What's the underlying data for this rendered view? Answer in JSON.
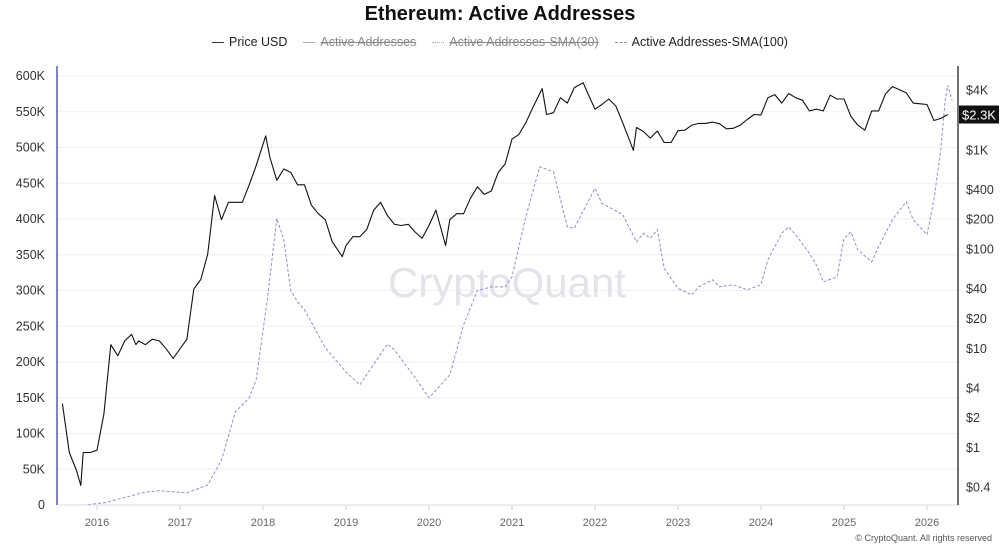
{
  "title": "Ethereum: Active Addresses",
  "legend": [
    {
      "label": "Price USD",
      "active": true
    },
    {
      "label": "Active Addresses",
      "active": false
    },
    {
      "label": "Active Addresses-SMA(30)",
      "active": false
    },
    {
      "label": "Active Addresses-SMA(100)",
      "active": true
    }
  ],
  "watermark": "CryptoQuant",
  "footer": "© CryptoQuant. All rights reserved",
  "current_price_label": "$2.3K",
  "colors": {
    "price": "#111111",
    "sma100": "#8c8fd6",
    "left_axis": "#7b7fe6"
  },
  "chart_data": {
    "type": "line",
    "title": "Ethereum: Active Addresses",
    "grid": true,
    "legend_placement": "top",
    "x_ticks": [
      "2016",
      "2017",
      "2018",
      "2019",
      "2020",
      "2021",
      "2022",
      "2023",
      "2024",
      "2025",
      "2026"
    ],
    "left_axis": {
      "ticks": [
        "0",
        "50K",
        "100K",
        "150K",
        "200K",
        "250K",
        "300K",
        "350K",
        "400K",
        "450K",
        "500K",
        "550K",
        "600K"
      ],
      "range": [
        0,
        600000
      ]
    },
    "right_axis": {
      "scale": "log",
      "ticks": [
        "$0.4",
        "$1",
        "$2",
        "$4",
        "$10",
        "$20",
        "$40",
        "$100",
        "$200",
        "$400",
        "$1K",
        "$2.3K",
        "$4K"
      ],
      "tick_values": [
        0.4,
        1,
        2,
        4,
        10,
        20,
        40,
        100,
        200,
        400,
        1000,
        2300,
        4000
      ]
    },
    "series": [
      {
        "name": "Price USD",
        "axis": "right",
        "points": [
          [
            "2015-08",
            2.8
          ],
          [
            "2015-09",
            0.9
          ],
          [
            "2015-10",
            0.6
          ],
          [
            "2015-10-21",
            0.42
          ],
          [
            "2015-11",
            0.9
          ],
          [
            "2015-12",
            0.9
          ],
          [
            "2016-01",
            0.95
          ],
          [
            "2016-02",
            2.2
          ],
          [
            "2016-03",
            11
          ],
          [
            "2016-04",
            8.5
          ],
          [
            "2016-05",
            12
          ],
          [
            "2016-06",
            14
          ],
          [
            "2016-06-20",
            11
          ],
          [
            "2016-07",
            12
          ],
          [
            "2016-08",
            11
          ],
          [
            "2016-09",
            12.5
          ],
          [
            "2016-10",
            12
          ],
          [
            "2016-11",
            10
          ],
          [
            "2016-12",
            8
          ],
          [
            "2017-01",
            10
          ],
          [
            "2017-02",
            12.5
          ],
          [
            "2017-03",
            40
          ],
          [
            "2017-04",
            50
          ],
          [
            "2017-05",
            90
          ],
          [
            "2017-06",
            350
          ],
          [
            "2017-07",
            200
          ],
          [
            "2017-08",
            300
          ],
          [
            "2017-09",
            300
          ],
          [
            "2017-10",
            300
          ],
          [
            "2017-11",
            450
          ],
          [
            "2017-12",
            700
          ],
          [
            "2018-01-13",
            1400
          ],
          [
            "2018-02",
            850
          ],
          [
            "2018-03",
            500
          ],
          [
            "2018-04",
            650
          ],
          [
            "2018-05",
            600
          ],
          [
            "2018-06",
            450
          ],
          [
            "2018-07",
            450
          ],
          [
            "2018-08",
            280
          ],
          [
            "2018-09",
            230
          ],
          [
            "2018-10",
            200
          ],
          [
            "2018-11",
            120
          ],
          [
            "2018-12-15",
            85
          ],
          [
            "2019-01",
            110
          ],
          [
            "2019-02",
            135
          ],
          [
            "2019-03",
            135
          ],
          [
            "2019-04",
            160
          ],
          [
            "2019-05",
            250
          ],
          [
            "2019-06",
            300
          ],
          [
            "2019-07",
            220
          ],
          [
            "2019-08",
            180
          ],
          [
            "2019-09",
            175
          ],
          [
            "2019-10",
            180
          ],
          [
            "2019-11",
            150
          ],
          [
            "2019-12",
            130
          ],
          [
            "2020-01",
            175
          ],
          [
            "2020-02",
            250
          ],
          [
            "2020-03-13",
            110
          ],
          [
            "2020-04",
            200
          ],
          [
            "2020-05",
            230
          ],
          [
            "2020-06",
            230
          ],
          [
            "2020-07",
            330
          ],
          [
            "2020-08",
            430
          ],
          [
            "2020-09",
            360
          ],
          [
            "2020-10",
            390
          ],
          [
            "2020-11",
            600
          ],
          [
            "2020-12",
            730
          ],
          [
            "2021-01",
            1300
          ],
          [
            "2021-02",
            1450
          ],
          [
            "2021-03",
            1900
          ],
          [
            "2021-04",
            2700
          ],
          [
            "2021-05-12",
            4200
          ],
          [
            "2021-06",
            2300
          ],
          [
            "2021-07",
            2400
          ],
          [
            "2021-08",
            3400
          ],
          [
            "2021-09",
            3000
          ],
          [
            "2021-10",
            4300
          ],
          [
            "2021-11-10",
            4800
          ],
          [
            "2021-12",
            3700
          ],
          [
            "2022-01",
            2600
          ],
          [
            "2022-02",
            2900
          ],
          [
            "2022-03",
            3300
          ],
          [
            "2022-04",
            2800
          ],
          [
            "2022-05",
            1900
          ],
          [
            "2022-06-18",
            1000
          ],
          [
            "2022-07",
            1700
          ],
          [
            "2022-08",
            1550
          ],
          [
            "2022-09",
            1330
          ],
          [
            "2022-10",
            1570
          ],
          [
            "2022-11",
            1200
          ],
          [
            "2022-12",
            1200
          ],
          [
            "2023-01",
            1580
          ],
          [
            "2023-02",
            1600
          ],
          [
            "2023-03",
            1800
          ],
          [
            "2023-04",
            1870
          ],
          [
            "2023-05",
            1870
          ],
          [
            "2023-06",
            1930
          ],
          [
            "2023-07",
            1860
          ],
          [
            "2023-08",
            1650
          ],
          [
            "2023-09",
            1670
          ],
          [
            "2023-10",
            1800
          ],
          [
            "2023-11",
            2050
          ],
          [
            "2023-12",
            2300
          ],
          [
            "2024-01",
            2280
          ],
          [
            "2024-02",
            3400
          ],
          [
            "2024-03",
            3650
          ],
          [
            "2024-04",
            3000
          ],
          [
            "2024-05",
            3750
          ],
          [
            "2024-06",
            3400
          ],
          [
            "2024-07",
            3200
          ],
          [
            "2024-08",
            2500
          ],
          [
            "2024-09",
            2600
          ],
          [
            "2024-10",
            2500
          ],
          [
            "2024-11",
            3600
          ],
          [
            "2024-12",
            3300
          ],
          [
            "2025-01",
            3300
          ],
          [
            "2025-02",
            2200
          ],
          [
            "2025-03",
            1800
          ],
          [
            "2025-04",
            1600
          ],
          [
            "2025-05",
            2500
          ],
          [
            "2025-06",
            2500
          ],
          [
            "2025-07",
            3700
          ],
          [
            "2025-08",
            4400
          ],
          [
            "2025-09",
            4100
          ],
          [
            "2025-10",
            3800
          ],
          [
            "2025-11",
            3000
          ],
          [
            "2025-12",
            2950
          ],
          [
            "2026-01",
            2900
          ],
          [
            "2026-02",
            2000
          ],
          [
            "2026-03",
            2100
          ],
          [
            "2026-04",
            2300
          ]
        ]
      },
      {
        "name": "Active Addresses-SMA(100)",
        "axis": "left",
        "points": [
          [
            "2015-11",
            0
          ],
          [
            "2016-02",
            3000
          ],
          [
            "2016-08",
            18000
          ],
          [
            "2016-10",
            20000
          ],
          [
            "2017-02",
            17000
          ],
          [
            "2017-05",
            28000
          ],
          [
            "2017-07",
            63000
          ],
          [
            "2017-09",
            130000
          ],
          [
            "2017-11",
            150000
          ],
          [
            "2017-12",
            175000
          ],
          [
            "2018-01-20",
            287000
          ],
          [
            "2018-03",
            401000
          ],
          [
            "2018-04",
            371000
          ],
          [
            "2018-05",
            300000
          ],
          [
            "2018-06",
            284000
          ],
          [
            "2018-07",
            273000
          ],
          [
            "2018-10",
            220000
          ],
          [
            "2019-01",
            186000
          ],
          [
            "2019-03",
            168000
          ],
          [
            "2019-07",
            225000
          ],
          [
            "2019-08",
            217000
          ],
          [
            "2019-11",
            178000
          ],
          [
            "2020-01",
            150000
          ],
          [
            "2020-04",
            182000
          ],
          [
            "2020-06",
            252000
          ],
          [
            "2020-08",
            300000
          ],
          [
            "2020-10",
            305000
          ],
          [
            "2020-12",
            305000
          ],
          [
            "2021-01",
            319000
          ],
          [
            "2021-03",
            403000
          ],
          [
            "2021-05",
            473000
          ],
          [
            "2021-07",
            466000
          ],
          [
            "2021-09",
            389000
          ],
          [
            "2021-10",
            387000
          ],
          [
            "2022-01",
            443000
          ],
          [
            "2022-02",
            422000
          ],
          [
            "2022-05",
            406000
          ],
          [
            "2022-07",
            368000
          ],
          [
            "2022-08",
            380000
          ],
          [
            "2022-09",
            373000
          ],
          [
            "2022-10",
            385000
          ],
          [
            "2022-11",
            331000
          ],
          [
            "2023-01",
            303000
          ],
          [
            "2023-03",
            294000
          ],
          [
            "2023-04",
            305000
          ],
          [
            "2023-06",
            315000
          ],
          [
            "2023-07",
            305000
          ],
          [
            "2023-09",
            308000
          ],
          [
            "2023-11",
            301000
          ],
          [
            "2024-01",
            308000
          ],
          [
            "2024-02",
            343000
          ],
          [
            "2024-04",
            380000
          ],
          [
            "2024-05",
            389000
          ],
          [
            "2024-06",
            378000
          ],
          [
            "2024-08",
            352000
          ],
          [
            "2024-09",
            336000
          ],
          [
            "2024-10",
            312000
          ],
          [
            "2024-12",
            319000
          ],
          [
            "2025-01",
            373000
          ],
          [
            "2025-02",
            382000
          ],
          [
            "2025-03",
            357000
          ],
          [
            "2025-05",
            340000
          ],
          [
            "2025-06",
            361000
          ],
          [
            "2025-08",
            399000
          ],
          [
            "2025-10",
            424000
          ],
          [
            "2025-11",
            399000
          ],
          [
            "2026-01",
            378000
          ],
          [
            "2026-02",
            427000
          ],
          [
            "2026-03",
            497000
          ],
          [
            "2026-03-20",
            566000
          ],
          [
            "2026-04",
            587000
          ],
          [
            "2026-04-20",
            566000
          ]
        ]
      }
    ]
  }
}
